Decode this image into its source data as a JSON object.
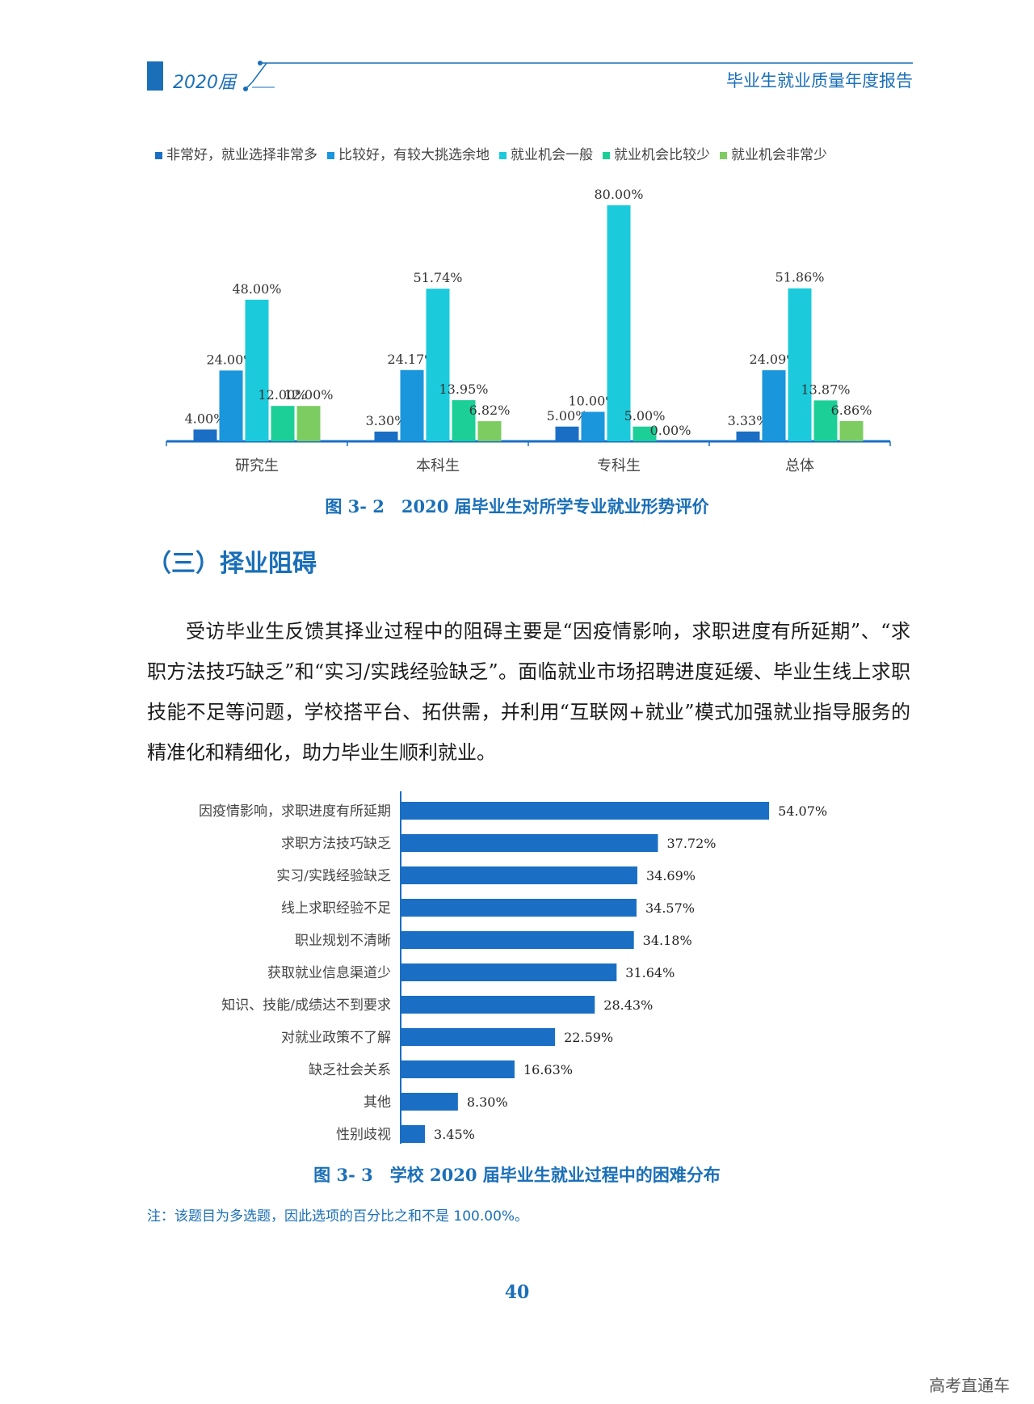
{
  "header": {
    "year": "2020届",
    "title": "毕业生就业质量年度报告"
  },
  "chart_data": [
    {
      "type": "bar",
      "categories": [
        "研究生",
        "本科生",
        "专科生",
        "总体"
      ],
      "series": [
        {
          "name": "非常好，就业选择非常多",
          "values": [
            4.0,
            3.3,
            5.0,
            3.33
          ],
          "labels": [
            "4.00%",
            "3.30%",
            "5.00%",
            "3.33%"
          ],
          "color": "#1a6fc4"
        },
        {
          "name": "比较好，有较大挑选余地",
          "values": [
            24.0,
            24.17,
            10.0,
            24.09
          ],
          "labels": [
            "24.00%",
            "24.17%",
            "10.00%",
            "24.09%"
          ],
          "color": "#1a96dc"
        },
        {
          "name": "就业机会一般",
          "values": [
            48.0,
            51.74,
            80.0,
            51.86
          ],
          "labels": [
            "48.00%",
            "51.74%",
            "80.00%",
            "51.86%"
          ],
          "color": "#1ccbdb"
        },
        {
          "name": "就业机会比较少",
          "values": [
            12.0,
            13.95,
            5.0,
            13.87
          ],
          "labels": [
            "12.00%",
            "13.95%",
            "5.00%",
            "13.87%"
          ],
          "color": "#1ccf97"
        },
        {
          "name": "就业机会非常少",
          "values": [
            12.0,
            6.82,
            0.0,
            6.86
          ],
          "labels": [
            "12.00%",
            "6.82%",
            "0.00%",
            "6.86%"
          ],
          "color": "#7ccc62"
        }
      ],
      "ylim": [
        0,
        80
      ],
      "legend": "top",
      "title": "图 3- 2　2020 届毕业生对所学专业就业形势评价"
    },
    {
      "type": "bar",
      "orientation": "horizontal",
      "categories": [
        "因疫情影响，求职进度有所延期",
        "求职方法技巧缺乏",
        "实习/实践经验缺乏",
        "线上求职经验不足",
        "职业规划不清晰",
        "获取就业信息渠道少",
        "知识、技能/成绩达不到要求",
        "对就业政策不了解",
        "缺乏社会关系",
        "其他",
        "性别歧视"
      ],
      "values": [
        54.07,
        37.72,
        34.69,
        34.57,
        34.18,
        31.64,
        28.43,
        22.59,
        16.63,
        8.3,
        3.45
      ],
      "labels": [
        "54.07%",
        "37.72%",
        "34.69%",
        "34.57%",
        "34.18%",
        "31.64%",
        "28.43%",
        "22.59%",
        "16.63%",
        "8.30%",
        "3.45%"
      ],
      "color": "#1a6fc4",
      "title": "图 3- 3　学校 2020 届毕业生就业过程中的困难分布"
    }
  ],
  "section_title": "（三）择业阻碍",
  "paragraph": "受访毕业生反馈其择业过程中的阻碍主要是“因疫情影响，求职进度有所延期”、“求职方法技巧缺乏”和“实习/实践经验缺乏”。面临就业市场招聘进度延缓、毕业生线上求职技能不足等问题，学校搭平台、拓供需，并利用“互联网+就业”模式加强就业指导服务的精准化和精细化，助力毕业生顺利就业。",
  "note": "注：该题目为多选题，因此选项的百分比之和不是 100.00%。",
  "page_number": "40",
  "watermark": "高考直通车"
}
